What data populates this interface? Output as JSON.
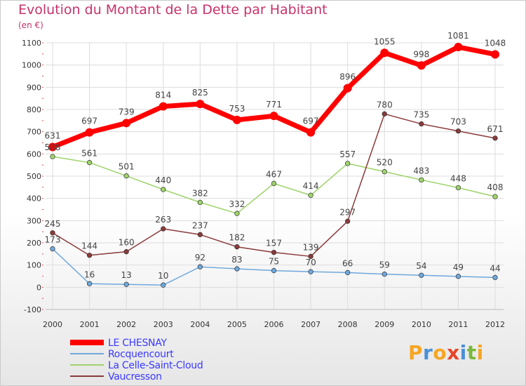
{
  "title": "Evolution du Montant de la Dette par Habitant",
  "unit_label": "(en €)",
  "logo": {
    "text": "Proxiti",
    "letters": [
      {
        "ch": "P",
        "color": "#f5a623"
      },
      {
        "ch": "r",
        "color": "#4a90d9"
      },
      {
        "ch": "o",
        "color": "#f5a623"
      },
      {
        "ch": "x",
        "color": "#e8462a"
      },
      {
        "ch": "i",
        "color": "#4a90d9"
      },
      {
        "ch": "t",
        "color": "#7ab83c"
      },
      {
        "ch": "i",
        "color": "#f5a623"
      }
    ]
  },
  "chart_data": {
    "type": "line",
    "title": "Evolution du Montant de la Dette par Habitant",
    "ylabel": "(en €)",
    "xlabel": "",
    "x": [
      "2000",
      "2001",
      "2002",
      "2003",
      "2004",
      "2005",
      "2006",
      "2007",
      "2008",
      "2009",
      "2010",
      "2011",
      "2012"
    ],
    "ylim": [
      -100,
      1100
    ],
    "yticks": [
      -100,
      0,
      100,
      200,
      300,
      400,
      500,
      600,
      700,
      800,
      900,
      1000,
      1100
    ],
    "grid": true,
    "legend_position": "bottom-left",
    "series": [
      {
        "name": "LE CHESNAY",
        "color": "#ff0000",
        "emphasis": true,
        "values": [
          631,
          697,
          739,
          814,
          825,
          753,
          771,
          697,
          896,
          1055,
          998,
          1081,
          1048
        ],
        "labels": [
          "631",
          "697",
          "739",
          "814",
          "825",
          "753",
          "771",
          "697",
          "896",
          "1055",
          "998",
          "1081",
          "1048"
        ]
      },
      {
        "name": "Rocquencourt",
        "color": "#6fa8dc",
        "emphasis": false,
        "values": [
          173,
          16,
          13,
          10,
          92,
          83,
          75,
          70,
          66,
          59,
          54,
          49,
          44
        ],
        "labels": [
          "173",
          "16",
          "13",
          "10",
          "92",
          "83",
          "75",
          "70",
          "66",
          "59",
          "54",
          "49",
          "44"
        ]
      },
      {
        "name": "La Celle-Saint-Cloud",
        "color": "#9ed36a",
        "emphasis": false,
        "values": [
          588,
          561,
          501,
          440,
          382,
          332,
          467,
          414,
          557,
          520,
          483,
          448,
          408
        ],
        "labels": [
          "588",
          "561",
          "501",
          "440",
          "382",
          "332",
          "467",
          "414",
          "557",
          "520",
          "483",
          "448",
          "408"
        ]
      },
      {
        "name": "Vaucresson",
        "color": "#8b3a3a",
        "emphasis": false,
        "values": [
          245,
          144,
          160,
          263,
          237,
          182,
          157,
          139,
          297,
          780,
          735,
          703,
          671
        ],
        "labels": [
          "245",
          "144",
          "160",
          "263",
          "237",
          "182",
          "157",
          "139",
          "297",
          "780",
          "735",
          "703",
          "671"
        ]
      }
    ]
  }
}
